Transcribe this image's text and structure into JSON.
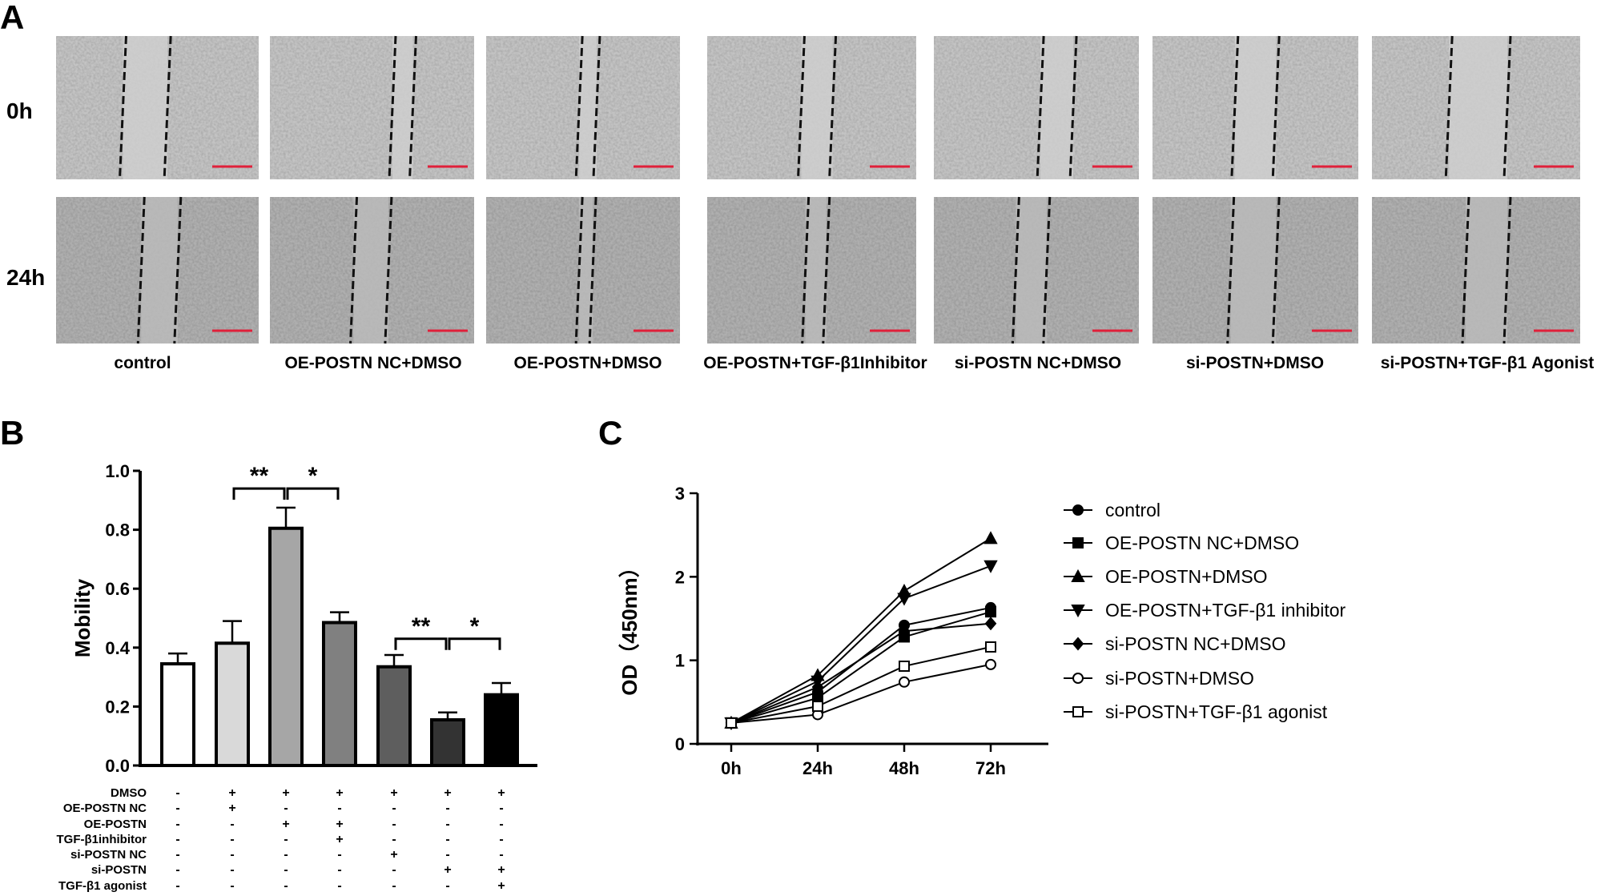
{
  "panel_labels": {
    "a": "A",
    "b": "B",
    "c": "C"
  },
  "panel_a": {
    "row_labels": [
      "0h",
      "24h"
    ],
    "groups": [
      "control",
      "OE-POSTN NC+DMSO",
      "OE-POSTN+DMSO",
      "OE-POSTN+TGF-β1Inhibitor",
      "si-POSTN NC+DMSO",
      "si-POSTN+DMSO",
      "si-POSTN+TGF-β1 Agonist"
    ],
    "scale_bar_color": "#e0203a"
  },
  "chart_data": [
    {
      "type": "bar",
      "title": "",
      "xlabel": "",
      "ylabel": "Mobility",
      "ylim": [
        0,
        1.0
      ],
      "yticks": [
        "0.0",
        "0.2",
        "0.4",
        "0.6",
        "0.8",
        "1.0"
      ],
      "categories": [
        "control",
        "OE-POSTN NC+DMSO",
        "OE-POSTN+DMSO",
        "OE-POSTN+TGF-β1 inhibitor",
        "si-POSTN NC+DMSO",
        "si-POSTN+DMSO",
        "si-POSTN+TGF-β1 agonist"
      ],
      "values": [
        0.345,
        0.415,
        0.805,
        0.485,
        0.335,
        0.155,
        0.24
      ],
      "errors": [
        0.035,
        0.075,
        0.07,
        0.035,
        0.04,
        0.025,
        0.04
      ],
      "colors": [
        "#ffffff",
        "#d9d9d9",
        "#a6a6a6",
        "#808080",
        "#5e5e5e",
        "#333333",
        "#000000"
      ],
      "significance": [
        {
          "from": 1,
          "to": 2,
          "label": "**",
          "level": 0.94
        },
        {
          "from": 2,
          "to": 3,
          "label": "*",
          "level": 0.94
        },
        {
          "from": 4,
          "to": 5,
          "label": "**",
          "level": 0.43
        },
        {
          "from": 5,
          "to": 6,
          "label": "*",
          "level": 0.43
        }
      ],
      "treatment_table": {
        "rows": [
          {
            "label": "DMSO",
            "values": [
              "-",
              "+",
              "+",
              "+",
              "+",
              "+",
              "+"
            ]
          },
          {
            "label": "OE-POSTN NC",
            "values": [
              "-",
              "+",
              "-",
              "-",
              "-",
              "-",
              "-"
            ]
          },
          {
            "label": "OE-POSTN",
            "values": [
              "-",
              "-",
              "+",
              "+",
              "-",
              "-",
              "-"
            ]
          },
          {
            "label": "TGF-β1inhibitor",
            "values": [
              "-",
              "-",
              "-",
              "+",
              "-",
              "-",
              "-"
            ]
          },
          {
            "label": "si-POSTN NC",
            "values": [
              "-",
              "-",
              "-",
              "-",
              "+",
              "-",
              "-"
            ]
          },
          {
            "label": "si-POSTN",
            "values": [
              "-",
              "-",
              "-",
              "-",
              "-",
              "+",
              "+"
            ]
          },
          {
            "label": "TGF-β1 agonist",
            "values": [
              "-",
              "-",
              "-",
              "-",
              "-",
              "-",
              "+"
            ]
          }
        ]
      }
    },
    {
      "type": "line",
      "title": "",
      "xlabel": "",
      "ylabel": "OD（450nm）",
      "ylim": [
        0,
        3
      ],
      "yticks": [
        "0",
        "1",
        "2",
        "3"
      ],
      "x": [
        "0h",
        "24h",
        "48h",
        "72h"
      ],
      "legend_position": "right",
      "series": [
        {
          "name": "control",
          "marker": "circle-filled",
          "values": [
            0.25,
            0.62,
            1.42,
            1.63
          ]
        },
        {
          "name": "OE-POSTN NC+DMSO",
          "marker": "square-filled",
          "values": [
            0.25,
            0.55,
            1.28,
            1.58
          ]
        },
        {
          "name": "OE-POSTN+DMSO",
          "marker": "triangle-up-filled",
          "values": [
            0.25,
            0.82,
            1.83,
            2.46
          ]
        },
        {
          "name": "OE-POSTN+TGF-β1 inhibitor",
          "marker": "triangle-down-filled",
          "values": [
            0.25,
            0.75,
            1.74,
            2.13
          ]
        },
        {
          "name": "si-POSTN NC+DMSO",
          "marker": "diamond-filled",
          "values": [
            0.25,
            0.68,
            1.35,
            1.44
          ]
        },
        {
          "name": "si-POSTN+DMSO",
          "marker": "circle-open",
          "values": [
            0.25,
            0.35,
            0.74,
            0.95
          ]
        },
        {
          "name": "si-POSTN+TGF-β1 agonist",
          "marker": "square-open",
          "values": [
            0.25,
            0.45,
            0.93,
            1.16
          ]
        }
      ]
    }
  ]
}
